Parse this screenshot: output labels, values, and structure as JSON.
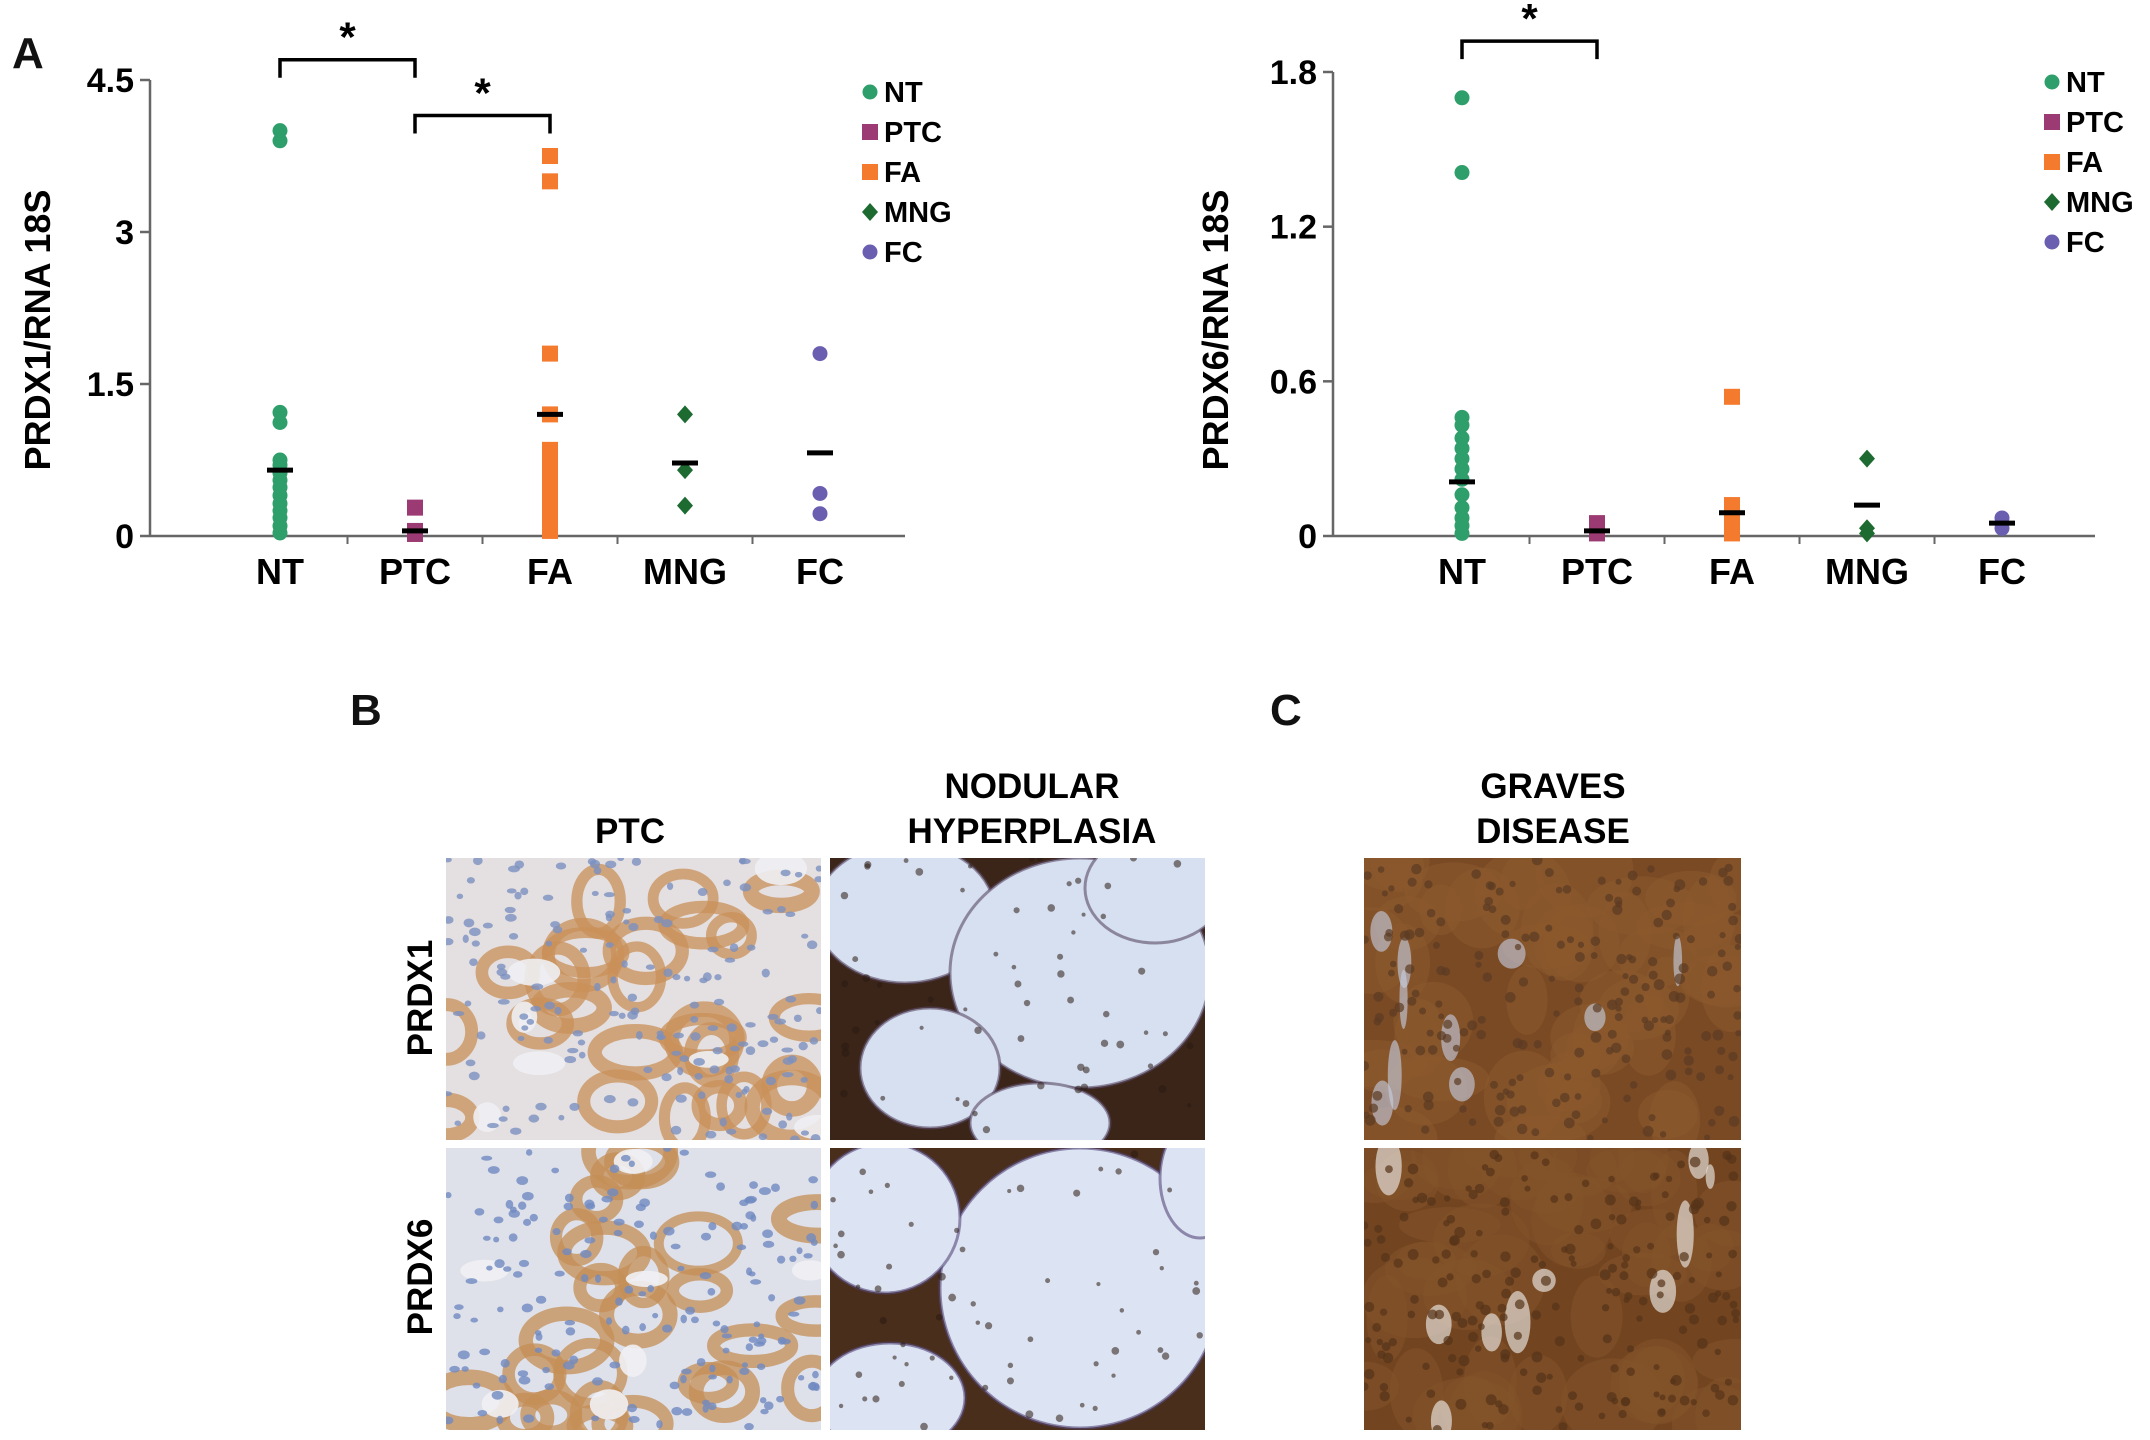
{
  "panels": {
    "a": "A",
    "b": "B",
    "c": "C"
  },
  "chart_data": [
    {
      "type": "scatter",
      "title": "",
      "ylabel": "PRDX1/RNA 18S",
      "xlabel": "",
      "categories": [
        "NT",
        "PTC",
        "FA",
        "MNG",
        "FC"
      ],
      "ylim": [
        0,
        4.5
      ],
      "yticks": [
        "0",
        "1.5",
        "3",
        "4.5"
      ],
      "ytick_values": [
        0,
        1.5,
        3,
        4.5
      ],
      "legend_position": "top-right",
      "series": [
        {
          "name": "NT",
          "category": "NT",
          "color": "#2e9e6a",
          "marker": "circle",
          "values": [
            4.0,
            3.9,
            1.22,
            1.12,
            0.75,
            0.7,
            0.62,
            0.55,
            0.48,
            0.4,
            0.32,
            0.25,
            0.18,
            0.1,
            0.03
          ],
          "mean": 0.65
        },
        {
          "name": "PTC",
          "category": "PTC",
          "color": "#9b3a73",
          "marker": "square",
          "values": [
            0.28,
            0.05,
            0.02
          ],
          "mean": 0.05
        },
        {
          "name": "FA",
          "category": "FA",
          "color": "#f47a2e",
          "marker": "square",
          "values": [
            3.75,
            3.5,
            1.8,
            1.2,
            0.85,
            0.7,
            0.58,
            0.45,
            0.35,
            0.25,
            0.18,
            0.1,
            0.05
          ],
          "mean": 1.2
        },
        {
          "name": "MNG",
          "category": "MNG",
          "color": "#1e6b32",
          "marker": "diamond",
          "values": [
            1.2,
            0.65,
            0.3
          ],
          "mean": 0.72
        },
        {
          "name": "FC",
          "category": "FC",
          "color": "#6a5eb0",
          "marker": "circle",
          "values": [
            1.8,
            0.42,
            0.22
          ],
          "mean": 0.82
        }
      ],
      "significance": [
        {
          "from": "NT",
          "to": "PTC",
          "label": "*",
          "level": 4.7
        },
        {
          "from": "PTC",
          "to": "FA",
          "label": "*",
          "level": 4.15
        }
      ]
    },
    {
      "type": "scatter",
      "title": "",
      "ylabel": "PRDX6/RNA 18S",
      "xlabel": "",
      "categories": [
        "NT",
        "PTC",
        "FA",
        "MNG",
        "FC"
      ],
      "ylim": [
        0,
        1.8
      ],
      "yticks": [
        "0",
        "0.6",
        "1.2",
        "1.8"
      ],
      "ytick_values": [
        0,
        0.6,
        1.2,
        1.8
      ],
      "legend_position": "top-right",
      "series": [
        {
          "name": "NT",
          "category": "NT",
          "color": "#2e9e6a",
          "marker": "circle",
          "values": [
            1.7,
            1.41,
            0.46,
            0.43,
            0.38,
            0.34,
            0.3,
            0.26,
            0.22,
            0.16,
            0.11,
            0.07,
            0.04,
            0.01
          ],
          "mean": 0.21
        },
        {
          "name": "PTC",
          "category": "PTC",
          "color": "#9b3a73",
          "marker": "square",
          "values": [
            0.05,
            0.02,
            0.01
          ],
          "mean": 0.02
        },
        {
          "name": "FA",
          "category": "FA",
          "color": "#f47a2e",
          "marker": "square",
          "values": [
            0.54,
            0.12,
            0.07,
            0.03,
            0.01
          ],
          "mean": 0.09
        },
        {
          "name": "MNG",
          "category": "MNG",
          "color": "#1e6b32",
          "marker": "diamond",
          "values": [
            0.3,
            0.03,
            0.01
          ],
          "mean": 0.12
        },
        {
          "name": "FC",
          "category": "FC",
          "color": "#6a5eb0",
          "marker": "circle",
          "values": [
            0.07,
            0.05,
            0.03
          ],
          "mean": 0.05
        }
      ],
      "significance": [
        {
          "from": "NT",
          "to": "PTC",
          "label": "*",
          "level": 1.92
        }
      ]
    }
  ],
  "histology": {
    "panel_b": {
      "columns": [
        "PTC",
        "NODULAR\nHYPERPLASIA"
      ],
      "rows": [
        "PRDX1",
        "PRDX6"
      ]
    },
    "panel_c": {
      "columns": [
        "GRAVES\nDISEASE"
      ]
    },
    "images": [
      {
        "id": "ptc-prdx1",
        "style": "ptc",
        "background": "#e4dfe0",
        "cell": "#c9905a",
        "nucleus": "#7a90bf",
        "lumen": "#eef0f4"
      },
      {
        "id": "nh-prdx1",
        "style": "nodular",
        "background": "#c8d4ea",
        "cell": "#3b2518",
        "nucleus": "#5a4a66",
        "lumen": "#d6e0f1"
      },
      {
        "id": "ptc-prdx6",
        "style": "ptc",
        "background": "#dfe1ea",
        "cell": "#c48d55",
        "nucleus": "#6f8ac0",
        "lumen": "#f1f1f4"
      },
      {
        "id": "nh-prdx6",
        "style": "nodular",
        "background": "#cfd7ec",
        "cell": "#4a2e1c",
        "nucleus": "#55487a",
        "lumen": "#dce3f2"
      },
      {
        "id": "gd-prdx1",
        "style": "graves",
        "background": "#7a4a25",
        "cell": "#8c5a2e",
        "nucleus": "#5b3a22",
        "lumen": "#c6d0e6"
      },
      {
        "id": "gd-prdx6",
        "style": "graves",
        "background": "#72441f",
        "cell": "#84532a",
        "nucleus": "#553318",
        "lumen": "#f5f5f5"
      }
    ]
  }
}
